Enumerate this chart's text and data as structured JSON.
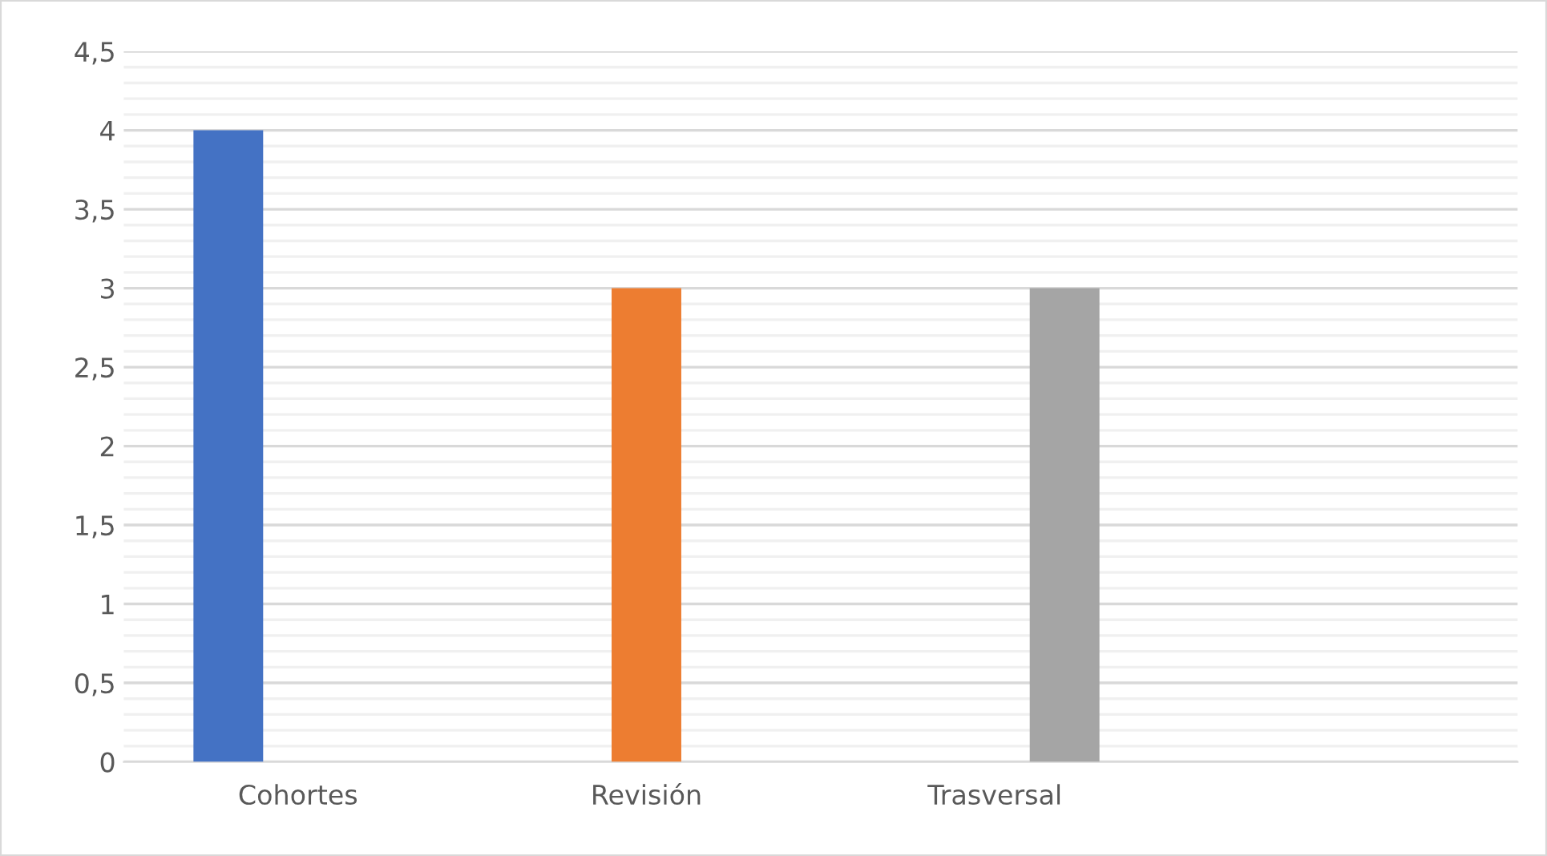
{
  "chart_data": {
    "type": "bar",
    "categories": [
      "Cohortes",
      "Revisión",
      "Trasversal",
      null
    ],
    "series": [
      {
        "color": "#4472c4",
        "values": [
          4,
          null,
          null,
          null
        ]
      },
      {
        "color": "#ed7d31",
        "values": [
          null,
          3,
          null,
          null
        ]
      },
      {
        "color": "#a5a5a5",
        "values": [
          null,
          null,
          3,
          null
        ]
      }
    ],
    "ylim": [
      0,
      4.5
    ],
    "yticks": [
      {
        "value": 0,
        "label": "0"
      },
      {
        "value": 0.1,
        "label": null
      },
      {
        "value": 0.2,
        "label": null
      },
      {
        "value": 0.3,
        "label": null
      },
      {
        "value": 0.4,
        "label": null
      },
      {
        "value": 0.5,
        "label": "0,5"
      },
      {
        "value": 0.6,
        "label": null
      },
      {
        "value": 0.7,
        "label": null
      },
      {
        "value": 0.8,
        "label": null
      },
      {
        "value": 0.9,
        "label": null
      },
      {
        "value": 1,
        "label": "1"
      },
      {
        "value": 1.1,
        "label": null
      },
      {
        "value": 1.2,
        "label": null
      },
      {
        "value": 1.3,
        "label": null
      },
      {
        "value": 1.4,
        "label": null
      },
      {
        "value": 1.5,
        "label": "1,5"
      },
      {
        "value": 1.6,
        "label": null
      },
      {
        "value": 1.7,
        "label": null
      },
      {
        "value": 1.8,
        "label": null
      },
      {
        "value": 1.9,
        "label": null
      },
      {
        "value": 2,
        "label": "2"
      },
      {
        "value": 2.1,
        "label": null
      },
      {
        "value": 2.2,
        "label": null
      },
      {
        "value": 2.3,
        "label": null
      },
      {
        "value": 2.4,
        "label": null
      },
      {
        "value": 2.5,
        "label": "2,5"
      },
      {
        "value": 2.6,
        "label": null
      },
      {
        "value": 2.7,
        "label": null
      },
      {
        "value": 2.8,
        "label": null
      },
      {
        "value": 2.9,
        "label": null
      },
      {
        "value": 3,
        "label": "3"
      },
      {
        "value": 3.1,
        "label": null
      },
      {
        "value": 3.2,
        "label": null
      },
      {
        "value": 3.3,
        "label": null
      },
      {
        "value": 3.4,
        "label": null
      },
      {
        "value": 3.5,
        "label": "3,5"
      },
      {
        "value": 3.6,
        "label": null
      },
      {
        "value": 3.7,
        "label": null
      },
      {
        "value": 3.8,
        "label": null
      },
      {
        "value": 3.9,
        "label": null
      },
      {
        "value": 4,
        "label": "4"
      },
      {
        "value": 4.1,
        "label": null
      },
      {
        "value": 4.2,
        "label": null
      },
      {
        "value": 4.3,
        "label": null
      },
      {
        "value": 4.4,
        "label": null
      },
      {
        "value": 4.5,
        "label": "4,5"
      }
    ],
    "grid": "y"
  }
}
